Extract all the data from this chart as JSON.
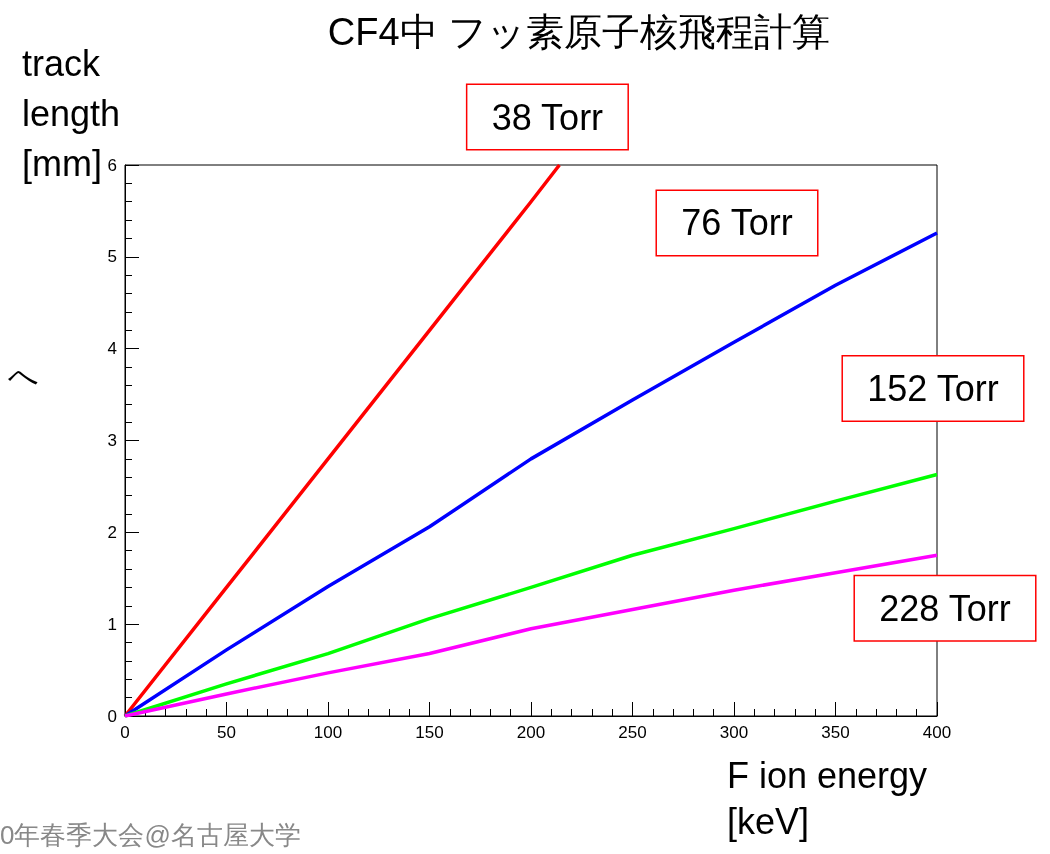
{
  "chart_data": {
    "type": "line",
    "title": "CF4中 フッ素原子核飛程計算",
    "xlabel": "F ion energy [keV]",
    "ylabel": "track length [mm]",
    "annotations": [
      "へ",
      "0年春季大会@名古屋大学"
    ],
    "series": [
      {
        "name": "38 Torr",
        "color": "#ff0000",
        "x": [
          0,
          50,
          100,
          150,
          200,
          214
        ],
        "values": [
          0,
          1.4,
          2.8,
          4.2,
          5.6,
          6
        ]
      },
      {
        "name": "76 Torr",
        "color": "#0000ff",
        "x": [
          0,
          50,
          100,
          150,
          200,
          250,
          300,
          350,
          400
        ],
        "values": [
          0,
          0.72,
          1.41,
          2.06,
          2.8,
          3.44,
          4.07,
          4.69,
          5.26
        ]
      },
      {
        "name": "152 Torr",
        "color": "#00ff00",
        "x": [
          0,
          50,
          100,
          150,
          200,
          250,
          300,
          350,
          400
        ],
        "values": [
          0,
          0.35,
          0.68,
          1.06,
          1.4,
          1.75,
          2.04,
          2.34,
          2.63
        ]
      },
      {
        "name": "228 Torr",
        "color": "#ff00ff",
        "x": [
          0,
          50,
          100,
          150,
          200,
          250,
          300,
          350,
          400
        ],
        "values": [
          0,
          0.24,
          0.47,
          0.68,
          0.95,
          1.16,
          1.37,
          1.56,
          1.75
        ]
      }
    ],
    "xlim": [
      0,
      400
    ],
    "xticks": [
      0,
      50,
      100,
      150,
      200,
      250,
      300,
      350,
      400
    ],
    "ylim": [
      0,
      6
    ],
    "yticks": [
      0,
      1,
      2,
      3,
      4,
      5,
      6
    ],
    "grid": false,
    "legend": false,
    "marker": "none",
    "line_style": "solid"
  }
}
